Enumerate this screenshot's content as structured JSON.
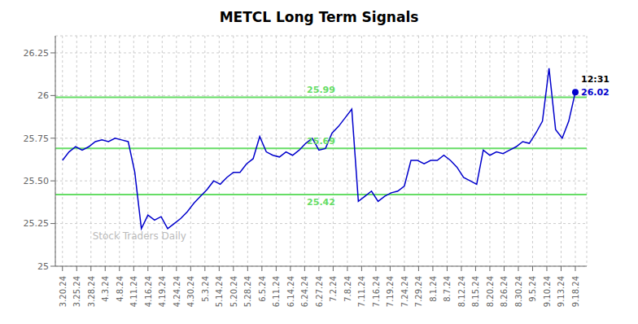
{
  "chart_data": {
    "type": "line",
    "title": "METCL Long Term Signals",
    "watermark": "Stock Traders Daily",
    "grid": true,
    "x": [
      0,
      0.461538,
      0.923077,
      1.384615,
      1.846154,
      2.307692,
      2.769231,
      3.230769,
      3.692308,
      4.153846,
      4.615385,
      5.076923,
      5.538462,
      6,
      6.461538,
      6.923077,
      7.384615,
      7.846154,
      8.307692,
      8.769231,
      9.230769,
      9.692308,
      10.153846,
      10.615385,
      11.076923,
      11.538462,
      12,
      12.461538,
      12.923077,
      13.384615,
      13.846154,
      14.307692,
      14.769231,
      15.230769,
      15.692308,
      16.153846,
      16.615385,
      17.076923,
      17.538462,
      18,
      18.461538,
      18.923077,
      19.384615,
      19.846154,
      20.307692,
      20.769231,
      21.230769,
      21.692308,
      22.153846,
      22.615385,
      23.076923,
      23.538462,
      24,
      24.461538,
      24.923077,
      25.384615,
      25.846154,
      26.307692,
      26.769231,
      27.230769,
      27.692308,
      28.153846,
      28.615385,
      29.076923,
      29.538462,
      30,
      30.461538,
      30.923077,
      31.384615,
      31.846154,
      32.307692,
      32.769231,
      33.230769,
      33.692308,
      34.153846,
      34.615385,
      35.076923,
      35.538462,
      36
    ],
    "values": [
      25.62,
      25.67,
      25.7,
      25.68,
      25.7,
      25.73,
      25.74,
      25.73,
      25.75,
      25.74,
      25.73,
      25.55,
      25.22,
      25.3,
      25.27,
      25.29,
      25.22,
      25.25,
      25.28,
      25.32,
      25.37,
      25.41,
      25.45,
      25.5,
      25.48,
      25.52,
      25.55,
      25.55,
      25.6,
      25.63,
      25.76,
      25.67,
      25.65,
      25.64,
      25.67,
      25.65,
      25.68,
      25.72,
      25.75,
      25.68,
      25.69,
      25.78,
      25.82,
      25.87,
      25.92,
      25.38,
      25.41,
      25.44,
      25.38,
      25.41,
      25.43,
      25.44,
      25.47,
      25.62,
      25.62,
      25.6,
      25.62,
      25.62,
      25.65,
      25.62,
      25.58,
      25.52,
      25.5,
      25.48,
      25.68,
      25.65,
      25.67,
      25.66,
      25.68,
      25.7,
      25.73,
      25.72,
      25.78,
      25.85,
      26.16,
      25.8,
      25.75,
      25.85,
      26.02
    ],
    "color": "#0000CC",
    "xlim": [
      -0.5,
      36.8
    ],
    "xticks": [
      {
        "value": 0,
        "label": "3.20.24"
      },
      {
        "value": 1,
        "label": "3.25.24"
      },
      {
        "value": 2,
        "label": "3.28.24"
      },
      {
        "value": 3,
        "label": "4.3.24"
      },
      {
        "value": 4,
        "label": "4.8.24"
      },
      {
        "value": 5,
        "label": "4.11.24"
      },
      {
        "value": 6,
        "label": "4.16.24"
      },
      {
        "value": 7,
        "label": "4.19.24"
      },
      {
        "value": 8,
        "label": "4.24.24"
      },
      {
        "value": 9,
        "label": "4.30.24"
      },
      {
        "value": 10,
        "label": "5.3.24"
      },
      {
        "value": 11,
        "label": "5.14.24"
      },
      {
        "value": 12,
        "label": "5.20.24"
      },
      {
        "value": 13,
        "label": "5.28.24"
      },
      {
        "value": 14,
        "label": "6.5.24"
      },
      {
        "value": 15,
        "label": "6.11.24"
      },
      {
        "value": 16,
        "label": "6.14.24"
      },
      {
        "value": 17,
        "label": "6.24.24"
      },
      {
        "value": 18,
        "label": "6.27.24"
      },
      {
        "value": 19,
        "label": "7.2.24"
      },
      {
        "value": 20,
        "label": "7.8.24"
      },
      {
        "value": 21,
        "label": "7.11.24"
      },
      {
        "value": 22,
        "label": "7.16.24"
      },
      {
        "value": 23,
        "label": "7.19.24"
      },
      {
        "value": 24,
        "label": "7.24.24"
      },
      {
        "value": 25,
        "label": "7.29.24"
      },
      {
        "value": 26,
        "label": "8.1.24"
      },
      {
        "value": 27,
        "label": "8.7.24"
      },
      {
        "value": 28,
        "label": "8.12.24"
      },
      {
        "value": 29,
        "label": "8.15.24"
      },
      {
        "value": 30,
        "label": "8.20.24"
      },
      {
        "value": 31,
        "label": "8.26.24"
      },
      {
        "value": 32,
        "label": "8.30.24"
      },
      {
        "value": 33,
        "label": "9.5.24"
      },
      {
        "value": 34,
        "label": "9.10.24"
      },
      {
        "value": 35,
        "label": "9.13.24"
      },
      {
        "value": 36,
        "label": "9.18.24"
      }
    ],
    "ylim": [
      25.0,
      26.35
    ],
    "yticks": [
      25,
      25.25,
      {
        "value": 25.5,
        "label": "25.50"
      },
      25.75,
      26,
      26.25
    ],
    "reference_lines": [
      {
        "value": 25.42,
        "label": "25.42"
      },
      {
        "value": 25.69,
        "label": "25.69"
      },
      {
        "value": 25.99,
        "label": "25.99"
      }
    ],
    "reference_color": "#66DD66",
    "annotation": {
      "x": 36,
      "y": 26.02,
      "texts": [
        "12:31",
        "26.02"
      ]
    }
  }
}
